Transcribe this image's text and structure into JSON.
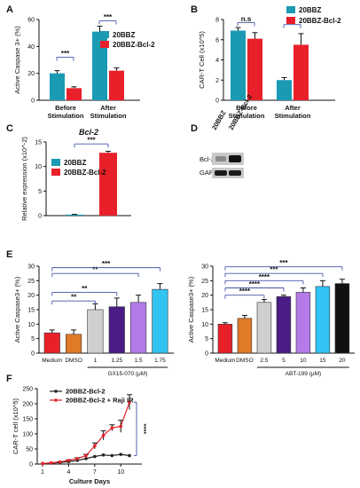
{
  "colors": {
    "teal": "#1a9ab3",
    "red": "#e8202a",
    "grey": "#cfcfcf",
    "orange": "#e07a26",
    "purple": "#4b1c86",
    "violet": "#b37be8",
    "cyan": "#31c4f2",
    "black": "#111111",
    "sig": "#4455aa"
  },
  "panels": {
    "A": "A",
    "B": "B",
    "C": "C",
    "D": "D",
    "E": "E",
    "F": "F"
  },
  "chart_data": [
    {
      "id": "A",
      "type": "bar",
      "categories": [
        "Before Stimulation",
        "After Stimulation"
      ],
      "series": [
        {
          "name": "20BBZ",
          "values": [
            20,
            51
          ],
          "errors": [
            2,
            4
          ]
        },
        {
          "name": "20BBZ-Bcl-2",
          "values": [
            9,
            22
          ],
          "errors": [
            1,
            2
          ]
        }
      ],
      "ylabel": "Active Caspase 3+ (%)",
      "ylim": [
        0,
        60
      ],
      "yticks": [
        "0",
        "20",
        "40",
        "60"
      ],
      "sig": [
        "***",
        "***"
      ],
      "legend": "top-right"
    },
    {
      "id": "B",
      "type": "bar",
      "categories": [
        "Before Stimulation",
        "After Stimulation"
      ],
      "series": [
        {
          "name": "20BBZ",
          "values": [
            6.9,
            2.0
          ],
          "errors": [
            0.3,
            0.25
          ]
        },
        {
          "name": "20BBZ-Bcl-2",
          "values": [
            6.1,
            5.5
          ],
          "errors": [
            0.6,
            1.1
          ]
        }
      ],
      "ylabel": "CAR-T Cell (x10^5)",
      "ylim": [
        0,
        8
      ],
      "yticks": [
        "0",
        "2",
        "4",
        "6",
        "8"
      ],
      "sig": [
        "n.s",
        "**"
      ],
      "legend": "top-right"
    },
    {
      "id": "C",
      "type": "bar",
      "title": "Bcl-2",
      "categories": [
        "20BBZ",
        "20BBZ-Bcl-2"
      ],
      "values": [
        0.2,
        12.8
      ],
      "errors": [
        0.05,
        0.3
      ],
      "ylabel": "Relative expression (x10^-2)",
      "ylim": [
        0,
        15
      ],
      "yticks": [
        "0",
        "5",
        "10",
        "15"
      ],
      "sig": "***",
      "series": [
        {
          "name": "20BBZ"
        },
        {
          "name": "20BBZ-Bcl-2"
        }
      ],
      "legend": "top-left"
    },
    {
      "id": "E1",
      "type": "bar",
      "categories": [
        "Medium",
        "DMSO",
        "1",
        "1.25",
        "1.5",
        "1.75"
      ],
      "values": [
        7,
        6.5,
        15,
        16,
        17.5,
        22
      ],
      "errors": [
        1,
        1.5,
        2,
        3,
        2.5,
        2
      ],
      "xlabel": "GX15-070 (μM)",
      "ylabel": "Active Caspase3+ (%)",
      "ylim": [
        0,
        30
      ],
      "yticks": [
        "0",
        "5",
        "10",
        "15",
        "20",
        "25",
        "30"
      ],
      "sig": [
        "**",
        "**",
        "**",
        "***"
      ]
    },
    {
      "id": "E2",
      "type": "bar",
      "categories": [
        "Medium",
        "DMSO",
        "2.5",
        "5",
        "10",
        "15",
        "20"
      ],
      "values": [
        10,
        12,
        17.5,
        19.5,
        21,
        23,
        24
      ],
      "errors": [
        0.5,
        1,
        1,
        0.5,
        1.5,
        2,
        1.5
      ],
      "xlabel": "ABT-199 (μM)",
      "ylabel": "Active Caspase3+ (%)",
      "ylim": [
        0,
        30
      ],
      "yticks": [
        "0",
        "5",
        "10",
        "15",
        "20",
        "25",
        "30"
      ],
      "sig": [
        "****",
        "****",
        "****",
        "***",
        "***"
      ]
    },
    {
      "id": "F",
      "type": "line",
      "x": [
        1,
        2,
        3,
        4,
        5,
        6,
        7,
        8,
        9,
        10,
        11
      ],
      "series": [
        {
          "name": "20BBZ-Bcl-2",
          "values": [
            2,
            3,
            5,
            8,
            12,
            18,
            25,
            30,
            28,
            32,
            28
          ]
        },
        {
          "name": "20BBZ-Bcl-2 + Raji IR",
          "values": [
            2,
            4,
            7,
            12,
            18,
            28,
            60,
            95,
            120,
            125,
            205
          ],
          "errors": [
            0,
            0,
            1,
            2,
            3,
            4,
            10,
            15,
            10,
            20,
            25
          ]
        }
      ],
      "xlabel": "Culture Days",
      "ylabel": "CAR-T cell (x10^5)",
      "ylim": [
        0,
        250
      ],
      "xticks": [
        "1",
        "4",
        "7",
        "10"
      ],
      "yticks": [
        "0",
        "50",
        "100",
        "150",
        "200",
        "250"
      ],
      "sig": "****",
      "legend": "top-left"
    }
  ]
}
